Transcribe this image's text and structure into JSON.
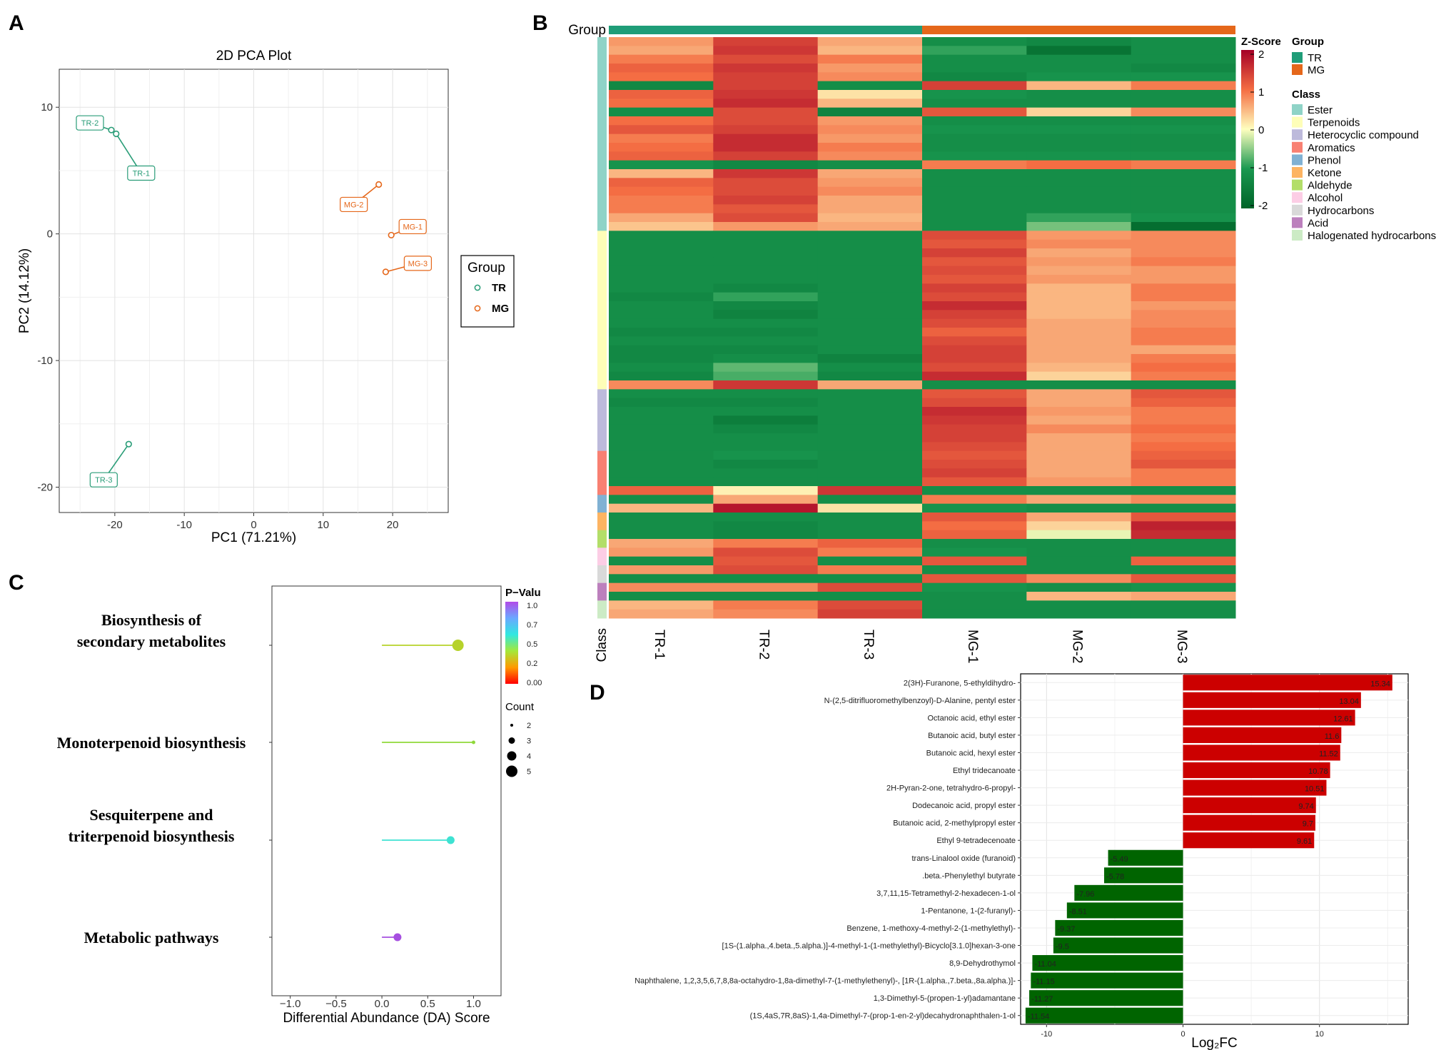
{
  "panels": {
    "A": "A",
    "B": "B",
    "C": "C",
    "D": "D"
  },
  "colors": {
    "TR": "#2a9d78",
    "MG": "#e5671a",
    "up": "#cc0000",
    "down": "#006400"
  },
  "chart_data": [
    {
      "id": "A",
      "type": "scatter",
      "title": "2D PCA Plot",
      "xlabel": "PC1 (71.21%)",
      "ylabel": "PC2 (14.12%)",
      "xlim": [
        -28,
        28
      ],
      "ylim": [
        -22,
        13
      ],
      "xticks": [
        -20,
        -10,
        0,
        10,
        20
      ],
      "yticks": [
        -20,
        -10,
        0,
        10
      ],
      "legend": {
        "title": "Group",
        "items": [
          "TR",
          "MG"
        ]
      },
      "points": [
        {
          "label": "TR-2",
          "group": "TR",
          "x": -20.5,
          "y": 8.2
        },
        {
          "label": "TR-1",
          "group": "TR",
          "x": -19.8,
          "y": 7.9
        },
        {
          "label": "TR-3",
          "group": "TR",
          "x": -18,
          "y": -16.6
        },
        {
          "label": "MG-2",
          "group": "MG",
          "x": 18,
          "y": 3.9
        },
        {
          "label": "MG-1",
          "group": "MG",
          "x": 19.8,
          "y": -0.1
        },
        {
          "label": "MG-3",
          "group": "MG",
          "x": 19,
          "y": -3
        }
      ]
    },
    {
      "id": "B",
      "type": "heatmap",
      "columns": [
        "TR-1",
        "TR-2",
        "TR-3",
        "MG-1",
        "MG-2",
        "MG-3"
      ],
      "group_label": "Group",
      "class_label": "Class",
      "zscore_title": "Z-Score",
      "zscore_ticks": [
        2,
        1,
        0,
        -1,
        -2
      ],
      "groups": [
        {
          "name": "TR",
          "color": "#1f9d78"
        },
        {
          "name": "MG",
          "color": "#e5671a"
        }
      ],
      "group_legend_title": "Group",
      "class_legend_title": "Class",
      "classes": [
        {
          "name": "Ester",
          "color": "#8fd3c7",
          "rows": 22
        },
        {
          "name": "Terpenoids",
          "color": "#fefeb8",
          "rows": 18
        },
        {
          "name": "Heterocyclic compound",
          "color": "#bdbadb",
          "rows": 7
        },
        {
          "name": "Aromatics",
          "color": "#f88072",
          "rows": 5
        },
        {
          "name": "Phenol",
          "color": "#80b1d3",
          "rows": 2
        },
        {
          "name": "Ketone",
          "color": "#fdb462",
          "rows": 2
        },
        {
          "name": "Aldehyde",
          "color": "#b3de69",
          "rows": 2
        },
        {
          "name": "Alcohol",
          "color": "#fccde5",
          "rows": 2
        },
        {
          "name": "Hydrocarbons",
          "color": "#d9d9d9",
          "rows": 2
        },
        {
          "name": "Acid",
          "color": "#bc80bd",
          "rows": 2
        },
        {
          "name": "Halogenated hydrocarbons",
          "color": "#ccebc5",
          "rows": 2
        }
      ],
      "values": [
        [
          0.7,
          1.4,
          0.6,
          -1.2,
          -1.3,
          -1.2
        ],
        [
          0.6,
          1.5,
          0.5,
          -0.9,
          -1.7,
          -1.2
        ],
        [
          0.9,
          1.3,
          0.9,
          -1.2,
          -1.2,
          -1.2
        ],
        [
          1.1,
          1.5,
          0.7,
          -1.2,
          -1.2,
          -1.3
        ],
        [
          1.0,
          1.4,
          0.8,
          -1.3,
          -1.1,
          -1.1
        ],
        [
          -1.3,
          1.4,
          -1.2,
          1.4,
          0.5,
          0.9
        ],
        [
          1.1,
          1.5,
          0.2,
          -1.1,
          -1.2,
          -1.2
        ],
        [
          1.0,
          1.6,
          0.5,
          -1.2,
          -1.2,
          -1.2
        ],
        [
          -1.2,
          1.3,
          -1.4,
          1.2,
          0.3,
          0.8
        ],
        [
          1.0,
          1.3,
          0.7,
          -1.2,
          -1.2,
          -1.2
        ],
        [
          1.2,
          1.4,
          0.8,
          -1.1,
          -1.1,
          -1.1
        ],
        [
          0.9,
          1.6,
          0.7,
          -1.2,
          -1.2,
          -1.2
        ],
        [
          1.0,
          1.6,
          0.9,
          -1.2,
          -1.2,
          -1.2
        ],
        [
          1.1,
          1.4,
          0.8,
          -1.1,
          -1.1,
          -1.1
        ],
        [
          -1.1,
          -1.3,
          -1.2,
          0.9,
          1.0,
          0.9
        ],
        [
          0.5,
          1.5,
          0.6,
          -1.2,
          -1.2,
          -1.2
        ],
        [
          1.1,
          1.3,
          0.7,
          -1.2,
          -1.2,
          -1.2
        ],
        [
          1.0,
          1.3,
          0.8,
          -1.2,
          -1.2,
          -1.2
        ],
        [
          0.9,
          1.4,
          0.6,
          -1.2,
          -1.2,
          -1.2
        ],
        [
          0.9,
          1.2,
          0.6,
          -1.2,
          -1.2,
          -1.2
        ],
        [
          0.6,
          1.3,
          0.5,
          -1.2,
          -0.9,
          -1.1
        ],
        [
          0.4,
          0.7,
          0.6,
          -1.2,
          -0.6,
          -1.8
        ],
        [
          -1.2,
          -1.2,
          -1.2,
          1.3,
          0.7,
          0.8
        ],
        [
          -1.2,
          -1.2,
          -1.2,
          1.2,
          0.8,
          0.8
        ],
        [
          -1.2,
          -1.2,
          -1.2,
          1.4,
          0.6,
          0.8
        ],
        [
          -1.2,
          -1.2,
          -1.2,
          1.2,
          0.7,
          0.9
        ],
        [
          -1.2,
          -1.2,
          -1.2,
          1.3,
          0.6,
          0.7
        ],
        [
          -1.2,
          -1.2,
          -1.2,
          1.2,
          0.7,
          0.7
        ],
        [
          -1.2,
          -1.3,
          -1.2,
          1.4,
          0.5,
          0.9
        ],
        [
          -1.3,
          -0.9,
          -1.2,
          1.3,
          0.5,
          0.9
        ],
        [
          -1.2,
          -1.3,
          -1.2,
          1.6,
          0.5,
          0.7
        ],
        [
          -1.2,
          -1.4,
          -1.2,
          1.4,
          0.5,
          0.8
        ],
        [
          -1.2,
          -1.2,
          -1.2,
          1.3,
          0.6,
          0.8
        ],
        [
          -1.3,
          -1.3,
          -1.2,
          1.1,
          0.6,
          0.9
        ],
        [
          -1.2,
          -1.2,
          -1.2,
          1.3,
          0.6,
          0.9
        ],
        [
          -1.3,
          -1.3,
          -1.2,
          1.4,
          0.6,
          0.6
        ],
        [
          -1.3,
          -1.2,
          -1.4,
          1.4,
          0.6,
          0.9
        ],
        [
          -1.2,
          -0.7,
          -1.2,
          1.3,
          0.5,
          1.0
        ],
        [
          -1.3,
          -0.8,
          -1.3,
          1.6,
          0.3,
          0.9
        ],
        [
          0.8,
          1.5,
          0.6,
          -1.2,
          -1.2,
          -1.2
        ],
        [
          -1.2,
          -1.2,
          -1.2,
          1.2,
          0.6,
          1.2
        ],
        [
          -1.3,
          -1.3,
          -1.2,
          1.3,
          0.6,
          1.1
        ],
        [
          -1.2,
          -1.2,
          -1.2,
          1.6,
          0.7,
          0.9
        ],
        [
          -1.2,
          -1.5,
          -1.2,
          1.5,
          0.6,
          0.9
        ],
        [
          -1.2,
          -1.3,
          -1.2,
          1.4,
          0.8,
          1.0
        ],
        [
          -1.2,
          -1.2,
          -1.2,
          1.4,
          0.6,
          0.9
        ],
        [
          -1.2,
          -1.2,
          -1.2,
          1.3,
          0.6,
          1.0
        ],
        [
          -1.2,
          -1.1,
          -1.2,
          1.2,
          0.6,
          1.1
        ],
        [
          -1.2,
          -1.3,
          -1.2,
          1.3,
          0.6,
          1.2
        ],
        [
          -1.2,
          -1.2,
          -1.2,
          1.4,
          0.6,
          0.9
        ],
        [
          -1.2,
          -1.2,
          -1.2,
          1.2,
          0.7,
          0.9
        ],
        [
          1.1,
          0.1,
          1.5,
          -1.2,
          -1.2,
          -1.2
        ],
        [
          -1.2,
          0.6,
          -1.2,
          0.9,
          0.6,
          0.8
        ],
        [
          0.5,
          1.8,
          0.2,
          -1.1,
          -1.2,
          -1.2
        ],
        [
          -1.2,
          -1.2,
          -1.2,
          1.2,
          0.6,
          1.2
        ],
        [
          -1.2,
          -1.3,
          -1.2,
          1.0,
          0.3,
          1.7
        ],
        [
          -1.2,
          -1.3,
          -1.2,
          1.1,
          -0.1,
          1.6
        ],
        [
          0.6,
          0.9,
          1.1,
          -1.2,
          -1.2,
          -1.2
        ],
        [
          0.7,
          1.3,
          0.9,
          -1.1,
          -1.2,
          -1.2
        ],
        [
          -1.2,
          1.2,
          -1.2,
          1.2,
          -1.2,
          1.1
        ],
        [
          0.7,
          1.3,
          0.9,
          -1.2,
          -1.2,
          -1.2
        ],
        [
          -1.2,
          -1.2,
          -1.2,
          1.2,
          0.8,
          1.2
        ],
        [
          0.8,
          0.8,
          1.3,
          -1.1,
          -1.2,
          -1.1
        ],
        [
          -1.2,
          -1.2,
          -1.2,
          -1.2,
          0.5,
          0.6
        ],
        [
          0.5,
          0.9,
          1.3,
          -1.2,
          -1.2,
          -1.2
        ],
        [
          0.6,
          0.8,
          1.4,
          -1.2,
          -1.2,
          -1.2
        ]
      ]
    },
    {
      "id": "C",
      "type": "lollipop",
      "xlabel": "Differential Abundance (DA) Score",
      "xlim": [
        -1.2,
        1.3
      ],
      "xticks": [
        -1.0,
        -0.5,
        0.0,
        0.5,
        1.0
      ],
      "xtick_labels": [
        "−1.0",
        "−0.5",
        "0.0",
        "0.5",
        "1.0"
      ],
      "pvalue_title": "P−Valu",
      "pvalue_ticks": [
        "1.0",
        "0.7",
        "0.5",
        "0.2",
        "0.00"
      ],
      "count_title": "Count",
      "count_ticks": [
        "2",
        "3",
        "4",
        "5"
      ],
      "pathways": [
        {
          "line1": "Biosynthesis of",
          "line2": "secondary metabolites",
          "score": 0.83,
          "count": 5,
          "color": "#b6d22a"
        },
        {
          "line1": "Monoterpenoid biosynthesis",
          "line2": "",
          "score": 1.0,
          "count": 2,
          "color": "#8fd83a"
        },
        {
          "line1": "Sesquiterpene and",
          "line2": "triterpenoid biosynthesis",
          "score": 0.75,
          "count": 3,
          "color": "#3ee2d2"
        },
        {
          "line1": "Metabolic pathways",
          "line2": "",
          "score": 0.17,
          "count": 3,
          "color": "#a64fe0"
        }
      ]
    },
    {
      "id": "D",
      "type": "bar",
      "orientation": "horizontal",
      "xlabel": "Log₂FC",
      "xlim": [
        -11.9,
        16.5
      ],
      "xticks": [
        -10,
        0,
        10
      ],
      "xtick_labels": [
        "-10",
        "0",
        "10"
      ],
      "categories": [
        "2(3H)-Furanone, 5-ethyldihydro-",
        "N-(2,5-ditrifluoromethylbenzoyl)-D-Alanine, pentyl ester",
        "Octanoic acid, ethyl ester",
        "Butanoic acid, butyl ester",
        "Butanoic acid, hexyl ester",
        "Ethyl tridecanoate",
        "2H-Pyran-2-one, tetrahydro-6-propyl-",
        "Dodecanoic acid, propyl ester",
        "Butanoic acid, 2-methylpropyl ester",
        "Ethyl 9-tetradecenoate",
        "trans-Linalool oxide (furanoid)",
        ".beta.-Phenylethyl butyrate",
        "3,7,11,15-Tetramethyl-2-hexadecen-1-ol",
        "1-Pentanone, 1-(2-furanyl)-",
        "Benzene, 1-methoxy-4-methyl-2-(1-methylethyl)-",
        "[1S-(1.alpha.,4.beta.,5.alpha.)]-4-methyl-1-(1-methylethyl)-Bicyclo[3.1.0]hexan-3-one",
        "8,9-Dehydrothymol",
        "Naphthalene, 1,2,3,5,6,7,8,8a-octahydro-1,8a-dimethyl-7-(1-methylethenyl)-, [1R-(1.alpha.,7.beta.,8a.alpha.)]-",
        "1,3-Dimethyl-5-(propen-1-yl)adamantane",
        "(1S,4aS,7R,8aS)-1,4a-Dimethyl-7-(prop-1-en-2-yl)decahydronaphthalen-1-ol"
      ],
      "values": [
        15.34,
        13.04,
        12.61,
        11.6,
        11.52,
        10.78,
        10.51,
        9.74,
        9.7,
        9.61,
        -5.49,
        -5.78,
        -7.96,
        -8.51,
        -9.37,
        -9.5,
        -11.04,
        -11.15,
        -11.27,
        -11.54
      ],
      "value_labels": [
        "15.34",
        "13.04",
        "12.61",
        "11.6",
        "11.52",
        "10.78",
        "10.51",
        "9.74",
        "9.7",
        "9.61",
        "-5.49",
        "-5.78",
        "-7.96",
        "-8.51",
        "-9.37",
        "-9.5",
        "-11.04",
        "-11.15",
        "-11.27",
        "-11.54"
      ]
    }
  ]
}
